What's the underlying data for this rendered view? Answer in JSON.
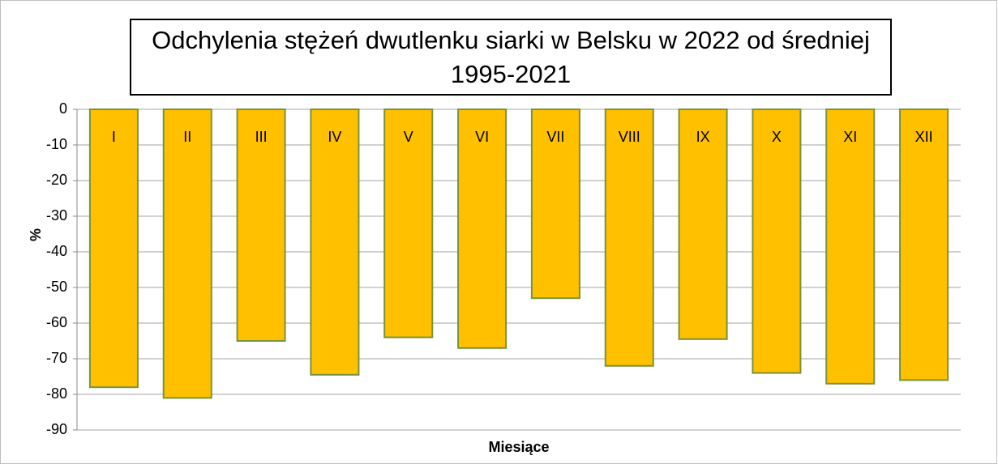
{
  "chart_data": {
    "type": "bar",
    "title": "Odchylenia stężeń dwutlenku siarki w Belsku w 2022 od średniej 1995-2021",
    "x_label": "Miesiące",
    "y_label": "%",
    "categories": [
      "I",
      "II",
      "III",
      "IV",
      "V",
      "VI",
      "VII",
      "VIII",
      "IX",
      "X",
      "XI",
      "XII"
    ],
    "values": [
      -78,
      -81,
      -65,
      -74.5,
      -64,
      -67,
      -53,
      -72,
      -64.5,
      -74,
      -77,
      -76
    ],
    "color": "#ffc000",
    "edge_color": "#77933c",
    "ylim": [
      -90,
      0
    ],
    "yticks": [
      0,
      -10,
      -20,
      -30,
      -40,
      -50,
      -60,
      -70,
      -80,
      -90
    ],
    "grid": true
  }
}
